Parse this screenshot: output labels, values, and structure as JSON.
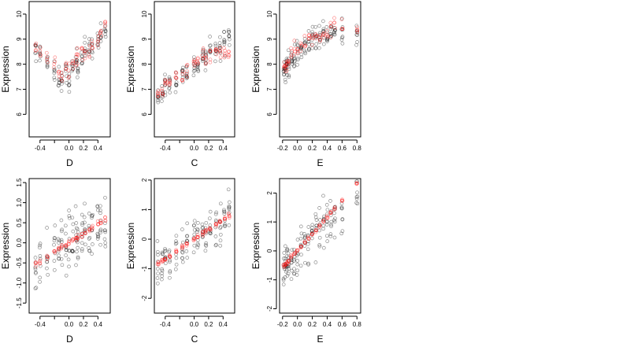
{
  "colors": {
    "observed": "#000000",
    "fitted": "#ff0000",
    "observed_opacity": 0.45,
    "fitted_opacity": 0.45
  },
  "chart_data": [
    {
      "type": "scatter",
      "xlabel": "D",
      "ylabel": "Expression",
      "xlim": [
        -0.55,
        0.57
      ],
      "ylim": [
        5.1,
        10.5
      ],
      "xticks": [
        -0.4,
        -0.2,
        0.0,
        0.2,
        0.4
      ],
      "xticklabels": [
        "-0.4",
        "",
        "0.0",
        "0.2",
        "0.4"
      ],
      "yticks": [
        6,
        7,
        8,
        9,
        10
      ],
      "yticklabels": [
        "6",
        "7",
        "8",
        "9",
        "10"
      ],
      "x_groups": [
        -0.46,
        -0.4,
        -0.3,
        -0.2,
        -0.14,
        -0.1,
        -0.04,
        0.0,
        0.05,
        0.1,
        0.12,
        0.18,
        0.22,
        0.28,
        0.32,
        0.4,
        0.44,
        0.5
      ],
      "series": [
        {
          "role": "observed",
          "pattern": "cloud",
          "center": [
            8.5,
            8.5,
            8.0,
            7.6,
            7.5,
            7.3,
            7.6,
            7.4,
            7.8,
            8.1,
            8.0,
            8.3,
            8.6,
            8.6,
            8.7,
            8.9,
            9.1,
            9.2
          ],
          "spread": 0.9,
          "n": 7
        },
        {
          "role": "fitted",
          "pattern": "cloud",
          "center": [
            8.7,
            8.5,
            8.2,
            8.0,
            7.8,
            7.6,
            7.9,
            7.8,
            8.2,
            8.2,
            8.3,
            8.5,
            8.6,
            8.4,
            8.7,
            9.0,
            9.2,
            9.6
          ],
          "spread": 0.65,
          "n": 4
        }
      ]
    },
    {
      "type": "scatter",
      "xlabel": "C",
      "ylabel": "Expression",
      "xlim": [
        -0.55,
        0.56
      ],
      "ylim": [
        5.1,
        10.5
      ],
      "xticks": [
        -0.4,
        -0.2,
        0.0,
        0.2,
        0.4
      ],
      "xticklabels": [
        "-0.4",
        "",
        "0.0",
        "0.2",
        "0.4"
      ],
      "yticks": [
        6,
        7,
        8,
        9,
        10
      ],
      "yticklabels": [
        "6",
        "7",
        "8",
        "9",
        "10"
      ],
      "x_groups": [
        -0.5,
        -0.44,
        -0.4,
        -0.34,
        -0.25,
        -0.16,
        -0.1,
        0.0,
        0.05,
        0.12,
        0.16,
        0.22,
        0.3,
        0.36,
        0.42,
        0.48
      ],
      "series": [
        {
          "role": "observed",
          "pattern": "cloud",
          "center": [
            6.7,
            6.9,
            7.1,
            7.2,
            7.4,
            7.6,
            7.7,
            7.9,
            8.0,
            8.3,
            8.2,
            8.5,
            8.6,
            8.7,
            8.9,
            9.1
          ],
          "spread": 0.9,
          "n": 8
        },
        {
          "role": "fitted",
          "pattern": "cloud",
          "center": [
            6.9,
            7.0,
            7.2,
            7.3,
            7.5,
            7.6,
            7.7,
            8.0,
            8.1,
            8.4,
            8.3,
            8.4,
            8.6,
            8.4,
            8.5,
            8.5
          ],
          "spread": 0.6,
          "n": 5
        }
      ]
    },
    {
      "type": "scatter",
      "xlabel": "E",
      "ylabel": "Expression",
      "xlim": [
        -0.24,
        0.85
      ],
      "ylim": [
        5.1,
        10.5
      ],
      "xticks": [
        -0.2,
        0.0,
        0.2,
        0.4,
        0.6,
        0.8
      ],
      "xticklabels": [
        "-0.2",
        "0.0",
        "0.2",
        "0.4",
        "0.6",
        "0.8"
      ],
      "yticks": [
        6,
        7,
        8,
        9,
        10
      ],
      "yticklabels": [
        "6",
        "7",
        "8",
        "9",
        "10"
      ],
      "x_groups": [
        -0.18,
        -0.16,
        -0.14,
        -0.12,
        -0.08,
        -0.04,
        0.0,
        0.05,
        0.1,
        0.15,
        0.2,
        0.25,
        0.3,
        0.35,
        0.4,
        0.45,
        0.5,
        0.6,
        0.8
      ],
      "series": [
        {
          "role": "observed",
          "pattern": "cloud",
          "center": [
            7.6,
            7.7,
            7.9,
            8.0,
            8.2,
            8.3,
            8.4,
            8.6,
            8.7,
            8.8,
            8.9,
            9.0,
            9.0,
            9.1,
            9.1,
            9.2,
            9.3,
            9.2,
            9.0
          ],
          "spread": 1.0,
          "n": 8
        },
        {
          "role": "fitted",
          "pattern": "cloud",
          "center": [
            7.8,
            7.9,
            8.1,
            8.2,
            8.4,
            8.5,
            8.6,
            8.8,
            8.9,
            9.0,
            9.1,
            9.1,
            9.2,
            9.3,
            9.3,
            9.4,
            9.5,
            9.5,
            9.5
          ],
          "spread": 0.7,
          "n": 4
        }
      ]
    },
    {
      "type": "scatter",
      "xlabel": "D",
      "ylabel": "Expression",
      "xlim": [
        -0.55,
        0.57
      ],
      "ylim": [
        -1.75,
        1.6
      ],
      "xticks": [
        -0.4,
        -0.2,
        0.0,
        0.2,
        0.4
      ],
      "xticklabels": [
        "-0.4",
        "",
        "0.0",
        "0.2",
        "0.4"
      ],
      "yticks": [
        -1.5,
        -1.0,
        -0.5,
        0.0,
        0.5,
        1.0,
        1.5
      ],
      "yticklabels": [
        "-1.5",
        "-1.0",
        "-0.5",
        "0.0",
        "0.5",
        "1.0",
        "1.5"
      ],
      "x_groups": [
        -0.46,
        -0.4,
        -0.3,
        -0.2,
        -0.14,
        -0.1,
        -0.04,
        0.0,
        0.05,
        0.1,
        0.12,
        0.18,
        0.22,
        0.28,
        0.32,
        0.4,
        0.44,
        0.5
      ],
      "series": [
        {
          "role": "observed",
          "pattern": "cloud",
          "center": [
            -0.55,
            -0.5,
            -0.35,
            -0.2,
            -0.15,
            -0.1,
            -0.05,
            0.0,
            0.05,
            0.1,
            0.12,
            0.2,
            0.25,
            0.3,
            0.35,
            0.45,
            0.5,
            0.55
          ],
          "spread": 1.3,
          "n": 8
        },
        {
          "role": "fitted",
          "pattern": "line",
          "slope": 1.18,
          "intercept": 0.0,
          "jitter": 0.06,
          "n": 4
        }
      ]
    },
    {
      "type": "scatter",
      "xlabel": "C",
      "ylabel": "Expression",
      "xlim": [
        -0.55,
        0.56
      ],
      "ylim": [
        -2.5,
        2.05
      ],
      "xticks": [
        -0.4,
        -0.2,
        0.0,
        0.2,
        0.4
      ],
      "xticklabels": [
        "-0.4",
        "",
        "0.0",
        "0.2",
        "0.4"
      ],
      "yticks": [
        -2,
        -1,
        0,
        1,
        2
      ],
      "yticklabels": [
        "-2",
        "-1",
        "0",
        "1",
        "2"
      ],
      "x_groups": [
        -0.5,
        -0.44,
        -0.4,
        -0.34,
        -0.25,
        -0.16,
        -0.1,
        0.0,
        0.05,
        0.12,
        0.16,
        0.22,
        0.3,
        0.36,
        0.42,
        0.48
      ],
      "series": [
        {
          "role": "observed",
          "pattern": "cloud",
          "center": [
            -0.8,
            -0.75,
            -0.6,
            -0.5,
            -0.35,
            -0.25,
            -0.15,
            0.0,
            0.05,
            0.2,
            0.25,
            0.35,
            0.5,
            0.6,
            0.75,
            0.9
          ],
          "spread": 1.6,
          "n": 8
        },
        {
          "role": "fitted",
          "pattern": "line",
          "slope": 1.65,
          "intercept": 0.0,
          "jitter": 0.07,
          "n": 5
        }
      ]
    },
    {
      "type": "scatter",
      "xlabel": "E",
      "ylabel": "Expression",
      "xlim": [
        -0.24,
        0.85
      ],
      "ylim": [
        -2.15,
        2.5
      ],
      "xticks": [
        -0.2,
        0.0,
        0.2,
        0.4,
        0.6,
        0.8
      ],
      "xticklabels": [
        "-0.2",
        "0.0",
        "0.2",
        "0.4",
        "0.6",
        "0.8"
      ],
      "yticks": [
        -2,
        -1,
        0,
        1,
        2
      ],
      "yticklabels": [
        "-2",
        "-1",
        "0",
        "1",
        "2"
      ],
      "x_groups": [
        -0.18,
        -0.16,
        -0.14,
        -0.12,
        -0.08,
        -0.04,
        0.0,
        0.05,
        0.1,
        0.15,
        0.2,
        0.25,
        0.3,
        0.35,
        0.4,
        0.45,
        0.5,
        0.6,
        0.8
      ],
      "series": [
        {
          "role": "observed",
          "pattern": "cloud",
          "center": [
            -0.55,
            -0.5,
            -0.45,
            -0.4,
            -0.3,
            -0.2,
            -0.1,
            0.05,
            0.2,
            0.3,
            0.45,
            0.6,
            0.7,
            0.8,
            1.0,
            1.1,
            1.2,
            1.5,
            2.0
          ],
          "spread": 1.5,
          "n": 8
        },
        {
          "role": "fitted",
          "pattern": "line",
          "slope": 2.9,
          "intercept": 0.0,
          "jitter": 0.06,
          "n": 4
        }
      ]
    }
  ]
}
